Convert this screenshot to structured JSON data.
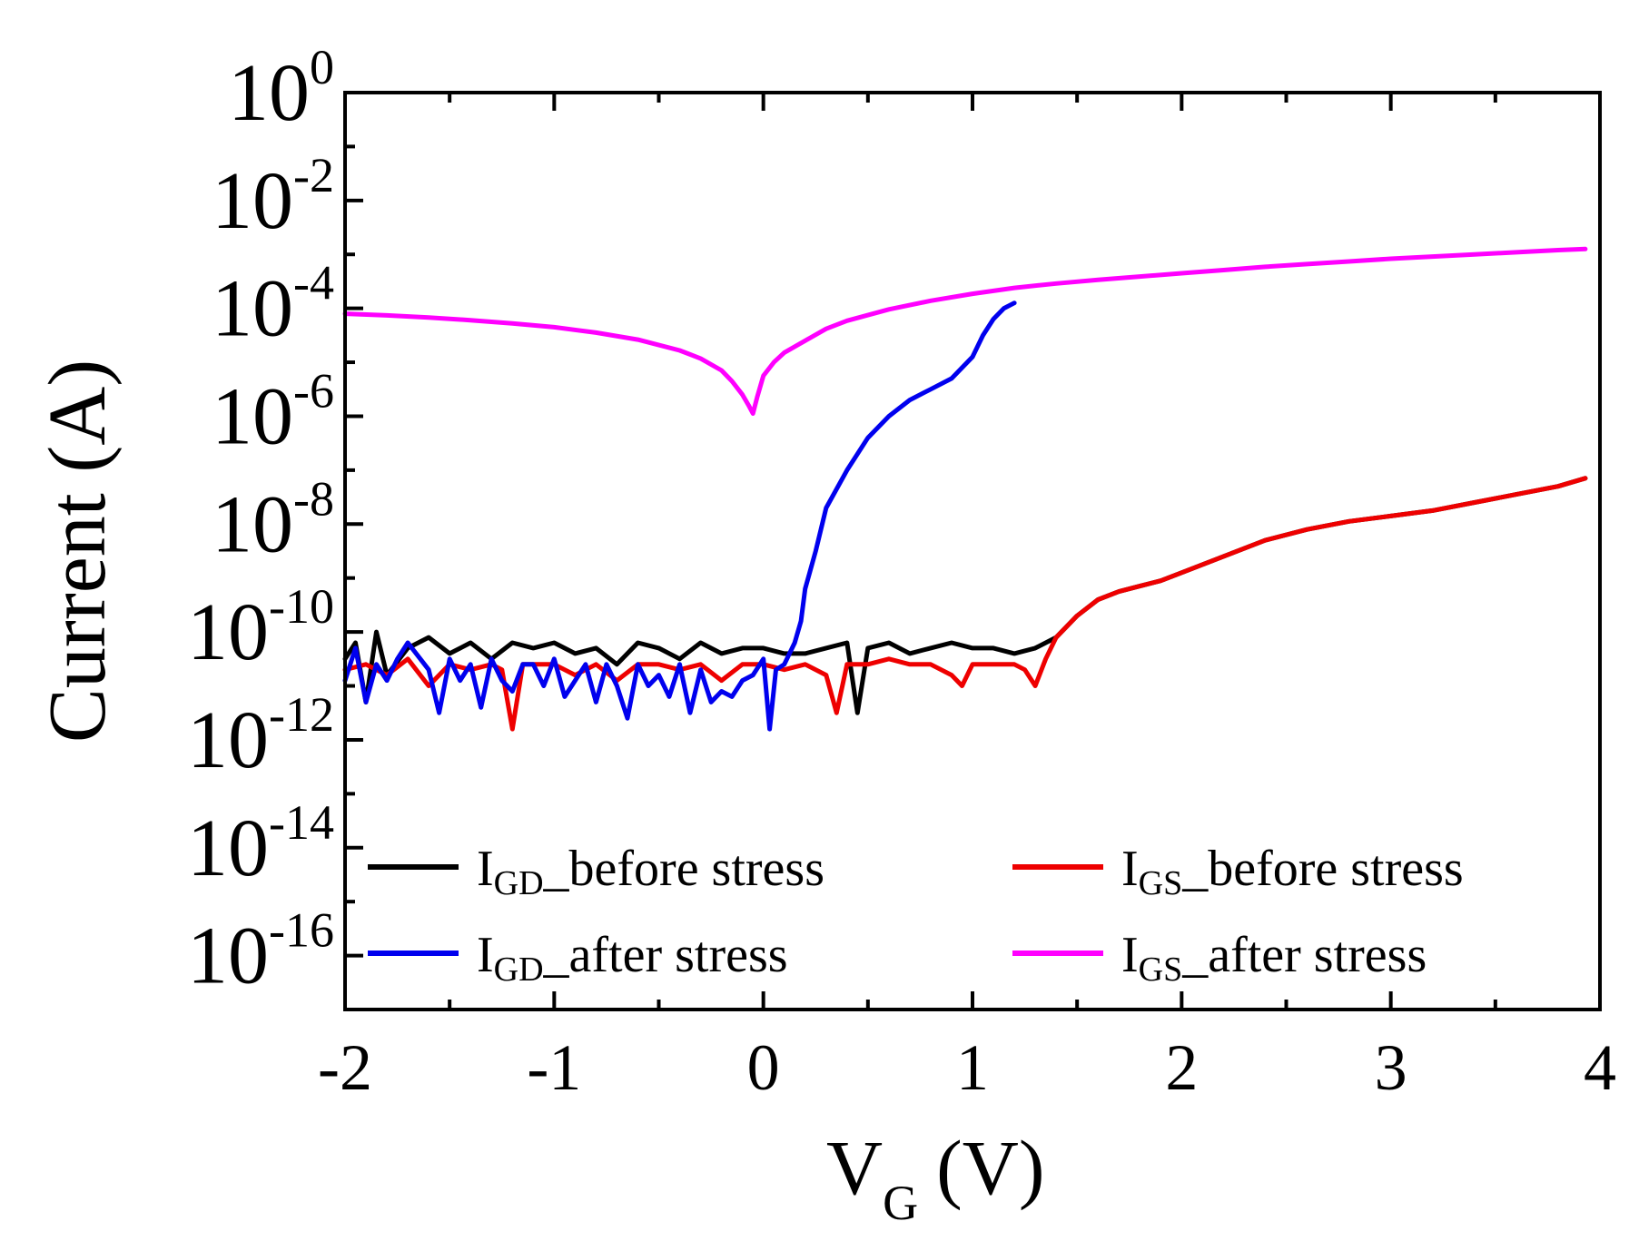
{
  "chart_data": {
    "type": "line",
    "xlabel": {
      "main": "V",
      "sub": "G",
      "unit": "(V)"
    },
    "ylabel": "Current (A)",
    "xlim": [
      -2,
      4
    ],
    "ylim_log10": [
      -17,
      0
    ],
    "y_scale": "log",
    "x_ticks": [
      {
        "v": -2,
        "label": "-2"
      },
      {
        "v": -1,
        "label": "-1"
      },
      {
        "v": 0,
        "label": "0"
      },
      {
        "v": 1,
        "label": "1"
      },
      {
        "v": 2,
        "label": "2"
      },
      {
        "v": 3,
        "label": "3"
      },
      {
        "v": 4,
        "label": "4"
      }
    ],
    "y_ticks": [
      {
        "exp": 0,
        "base": "10",
        "sup": "0"
      },
      {
        "exp": -2,
        "base": "10",
        "sup": "-2"
      },
      {
        "exp": -4,
        "base": "10",
        "sup": "-4"
      },
      {
        "exp": -6,
        "base": "10",
        "sup": "-6"
      },
      {
        "exp": -8,
        "base": "10",
        "sup": "-8"
      },
      {
        "exp": -10,
        "base": "10",
        "sup": "-10"
      },
      {
        "exp": -12,
        "base": "10",
        "sup": "-12"
      },
      {
        "exp": -14,
        "base": "10",
        "sup": "-14"
      },
      {
        "exp": -16,
        "base": "10",
        "sup": "-16"
      }
    ],
    "legend_placement": "bottom, two columns",
    "series": [
      {
        "key": "igd_before",
        "legend_main": "I",
        "legend_sub": "GD",
        "legend_rest": "_before stress",
        "color": "#000000",
        "x": [
          -2.0,
          -1.95,
          -1.9,
          -1.85,
          -1.8,
          -1.7,
          -1.6,
          -1.5,
          -1.4,
          -1.3,
          -1.2,
          -1.1,
          -1.0,
          -0.9,
          -0.8,
          -0.7,
          -0.6,
          -0.5,
          -0.4,
          -0.3,
          -0.2,
          -0.1,
          0.0,
          0.1,
          0.2,
          0.3,
          0.4,
          0.45,
          0.5,
          0.6,
          0.7,
          0.8,
          0.9,
          1.0,
          1.1,
          1.2,
          1.3,
          1.4,
          1.5,
          1.6,
          1.7,
          1.8,
          1.9,
          2.0,
          2.2,
          2.4,
          2.6,
          2.8,
          3.0,
          3.2,
          3.4,
          3.6,
          3.8,
          3.93
        ],
        "y": [
          -10.5,
          -10.2,
          -11.3,
          -10.0,
          -10.8,
          -10.3,
          -10.1,
          -10.4,
          -10.2,
          -10.5,
          -10.2,
          -10.3,
          -10.2,
          -10.4,
          -10.3,
          -10.6,
          -10.2,
          -10.3,
          -10.5,
          -10.2,
          -10.4,
          -10.3,
          -10.3,
          -10.4,
          -10.4,
          -10.3,
          -10.2,
          -11.5,
          -10.3,
          -10.2,
          -10.4,
          -10.3,
          -10.2,
          -10.3,
          -10.3,
          -10.4,
          -10.3,
          -10.1,
          -9.7,
          -9.4,
          -9.25,
          -9.15,
          -9.05,
          -8.9,
          -8.6,
          -8.3,
          -8.1,
          -7.95,
          -7.85,
          -7.75,
          -7.6,
          -7.45,
          -7.3,
          -7.15
        ]
      },
      {
        "key": "igs_before",
        "legend_main": "I",
        "legend_sub": "GS",
        "legend_rest": "_before stress",
        "color": "#ee0000",
        "x": [
          -2.0,
          -1.9,
          -1.8,
          -1.7,
          -1.6,
          -1.5,
          -1.4,
          -1.3,
          -1.25,
          -1.2,
          -1.15,
          -1.1,
          -1.0,
          -0.9,
          -0.8,
          -0.7,
          -0.6,
          -0.5,
          -0.4,
          -0.3,
          -0.2,
          -0.1,
          0.0,
          0.1,
          0.2,
          0.3,
          0.35,
          0.4,
          0.5,
          0.6,
          0.7,
          0.8,
          0.9,
          0.95,
          1.0,
          1.1,
          1.2,
          1.25,
          1.3,
          1.35,
          1.4,
          1.5,
          1.6,
          1.7,
          1.8,
          1.9,
          2.0,
          2.2,
          2.4,
          2.6,
          2.8,
          3.0,
          3.2,
          3.4,
          3.6,
          3.8,
          3.93
        ],
        "y": [
          -10.7,
          -10.6,
          -10.8,
          -10.5,
          -11.0,
          -10.6,
          -10.7,
          -10.6,
          -10.7,
          -11.8,
          -10.6,
          -10.6,
          -10.6,
          -10.8,
          -10.6,
          -10.9,
          -10.6,
          -10.6,
          -10.7,
          -10.6,
          -10.9,
          -10.6,
          -10.6,
          -10.7,
          -10.6,
          -10.8,
          -11.5,
          -10.6,
          -10.6,
          -10.5,
          -10.6,
          -10.6,
          -10.8,
          -11.0,
          -10.6,
          -10.6,
          -10.6,
          -10.7,
          -11.0,
          -10.5,
          -10.1,
          -9.7,
          -9.4,
          -9.25,
          -9.15,
          -9.05,
          -8.9,
          -8.6,
          -8.3,
          -8.1,
          -7.95,
          -7.85,
          -7.75,
          -7.6,
          -7.45,
          -7.3,
          -7.15
        ]
      },
      {
        "key": "igd_after",
        "legend_main": "I",
        "legend_sub": "GD",
        "legend_rest": "_after stress",
        "color": "#0000ee",
        "x": [
          -2.0,
          -1.95,
          -1.9,
          -1.85,
          -1.8,
          -1.75,
          -1.7,
          -1.6,
          -1.55,
          -1.5,
          -1.45,
          -1.4,
          -1.35,
          -1.3,
          -1.25,
          -1.2,
          -1.15,
          -1.1,
          -1.05,
          -1.0,
          -0.95,
          -0.9,
          -0.85,
          -0.8,
          -0.75,
          -0.7,
          -0.65,
          -0.6,
          -0.55,
          -0.5,
          -0.45,
          -0.4,
          -0.35,
          -0.3,
          -0.25,
          -0.2,
          -0.15,
          -0.1,
          -0.05,
          0.0,
          0.03,
          0.06,
          0.1,
          0.15,
          0.18,
          0.2,
          0.25,
          0.3,
          0.4,
          0.5,
          0.6,
          0.7,
          0.8,
          0.9,
          1.0,
          1.05,
          1.1,
          1.15,
          1.2
        ],
        "y": [
          -10.9,
          -10.3,
          -11.3,
          -10.6,
          -10.9,
          -10.5,
          -10.2,
          -10.7,
          -11.5,
          -10.5,
          -10.9,
          -10.6,
          -11.4,
          -10.5,
          -10.9,
          -11.1,
          -10.6,
          -10.6,
          -11.0,
          -10.5,
          -11.2,
          -10.9,
          -10.6,
          -11.3,
          -10.6,
          -11.0,
          -11.6,
          -10.6,
          -11.0,
          -10.8,
          -11.2,
          -10.6,
          -11.5,
          -10.7,
          -11.3,
          -11.1,
          -11.2,
          -10.9,
          -10.8,
          -10.5,
          -11.8,
          -10.7,
          -10.6,
          -10.2,
          -9.8,
          -9.2,
          -8.5,
          -7.7,
          -7.0,
          -6.4,
          -6.0,
          -5.7,
          -5.5,
          -5.3,
          -4.9,
          -4.5,
          -4.2,
          -4.0,
          -3.9
        ]
      },
      {
        "key": "igs_after",
        "legend_main": "I",
        "legend_sub": "GS",
        "legend_rest": "_after stress",
        "color": "#ff00ff",
        "x": [
          -2.0,
          -1.8,
          -1.6,
          -1.4,
          -1.2,
          -1.0,
          -0.8,
          -0.6,
          -0.4,
          -0.3,
          -0.2,
          -0.15,
          -0.1,
          -0.07,
          -0.05,
          -0.03,
          0.0,
          0.05,
          0.1,
          0.2,
          0.3,
          0.4,
          0.6,
          0.8,
          1.0,
          1.2,
          1.4,
          1.6,
          1.8,
          2.0,
          2.2,
          2.4,
          2.6,
          2.8,
          3.0,
          3.2,
          3.4,
          3.6,
          3.8,
          3.93
        ],
        "y": [
          -4.1,
          -4.13,
          -4.17,
          -4.22,
          -4.28,
          -4.35,
          -4.45,
          -4.58,
          -4.78,
          -4.93,
          -5.15,
          -5.35,
          -5.6,
          -5.8,
          -5.95,
          -5.65,
          -5.25,
          -5.0,
          -4.82,
          -4.6,
          -4.38,
          -4.23,
          -4.02,
          -3.86,
          -3.73,
          -3.62,
          -3.54,
          -3.47,
          -3.41,
          -3.35,
          -3.29,
          -3.23,
          -3.18,
          -3.13,
          -3.08,
          -3.04,
          -3.0,
          -2.96,
          -2.92,
          -2.9
        ]
      }
    ]
  }
}
